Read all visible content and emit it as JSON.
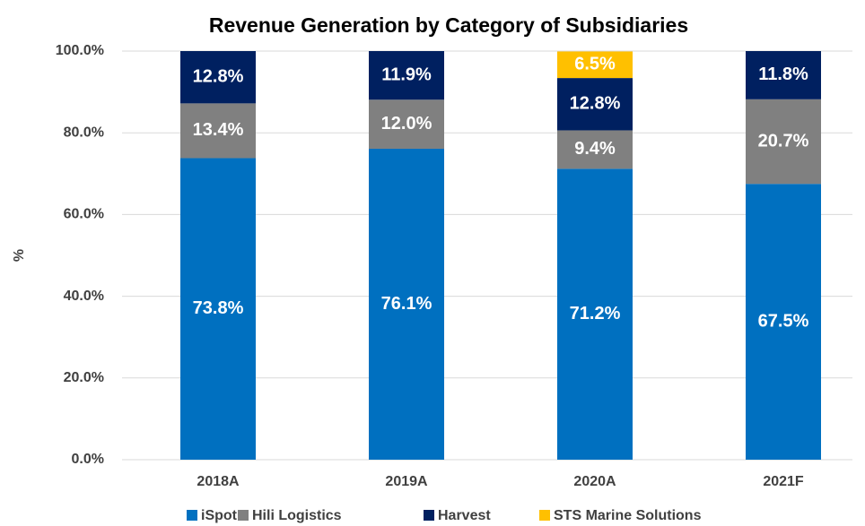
{
  "chart_data": {
    "type": "stacked_bar",
    "title": "Revenue Generation by Category of Subsidiaries",
    "y_label": "%",
    "categories": [
      "2018A",
      "2019A",
      "2020A",
      "2021F"
    ],
    "series": [
      {
        "name": "iSpot",
        "color": "#0070c0",
        "values": [
          73.8,
          76.1,
          71.2,
          67.5
        ],
        "value_labels": [
          "73.8%",
          "76.1%",
          "71.2%",
          "67.5%"
        ]
      },
      {
        "name": "Hili Logistics",
        "color": "#808080",
        "values": [
          13.4,
          12.0,
          9.4,
          20.7
        ],
        "value_labels": [
          "13.4%",
          "12.0%",
          "9.4%",
          "20.7%"
        ]
      },
      {
        "name": "Harvest",
        "color": "#002060",
        "values": [
          12.8,
          11.9,
          12.8,
          11.8
        ],
        "value_labels": [
          "12.8%",
          "11.9%",
          "12.8%",
          "11.8%"
        ]
      },
      {
        "name": "STS Marine Solutions",
        "color": "#ffc000",
        "values": [
          null,
          null,
          6.5,
          null
        ],
        "value_labels": [
          null,
          null,
          "6.5%",
          null
        ]
      }
    ],
    "ylim": [
      0,
      100
    ],
    "yticks": [
      {
        "value": 0,
        "label": "0.0%"
      },
      {
        "value": 20,
        "label": "20.0%"
      },
      {
        "value": 40,
        "label": "40.0%"
      },
      {
        "value": 60,
        "label": "60.0%"
      },
      {
        "value": 80,
        "label": "80.0%"
      },
      {
        "value": 100,
        "label": "100.0%"
      }
    ],
    "grid": true,
    "legend": "bottom"
  }
}
